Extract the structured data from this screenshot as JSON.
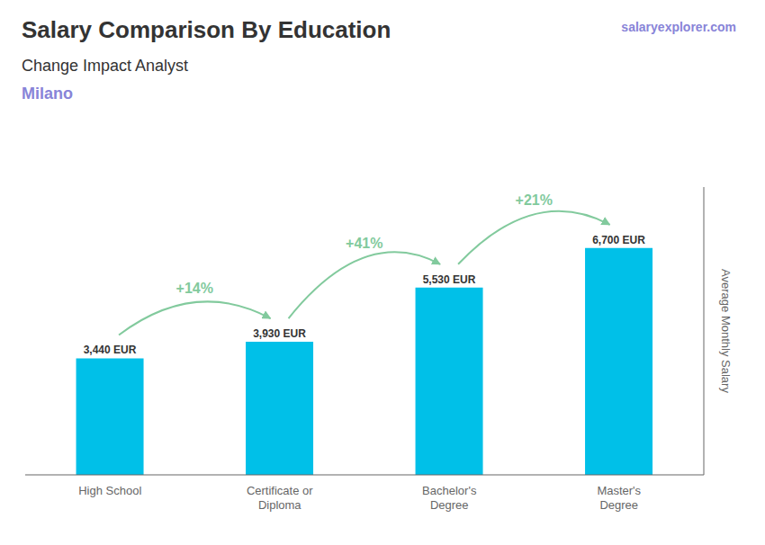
{
  "chart_data": {
    "type": "bar",
    "title": "Salary Comparison By Education",
    "subtitle": "Change Impact Analyst",
    "ylabel": "Average Monthly Salary",
    "categories": [
      "High School",
      "Certificate or\nDiploma",
      "Bachelor's\nDegree",
      "Master's\nDegree"
    ],
    "values": [
      3440,
      3930,
      5530,
      6700
    ],
    "value_labels": [
      "3,440 EUR",
      "3,930 EUR",
      "5,530 EUR",
      "6,700 EUR"
    ],
    "data_labels": true,
    "color": "#00c0e8",
    "ylim": [
      0,
      8500
    ],
    "grid": false,
    "tick_labels": "x",
    "annotations": [
      {
        "text": "Milano"
      },
      {
        "text": "salaryexplorer.com"
      },
      {
        "text": "+14%",
        "from": "High School",
        "to": "Certificate or\nDiploma"
      },
      {
        "text": "+41%",
        "from": "Certificate or\nDiploma",
        "to": "Bachelor's\nDegree"
      },
      {
        "text": "+21%",
        "from": "Bachelor's\nDegree",
        "to": "Master's\nDegree"
      }
    ]
  }
}
